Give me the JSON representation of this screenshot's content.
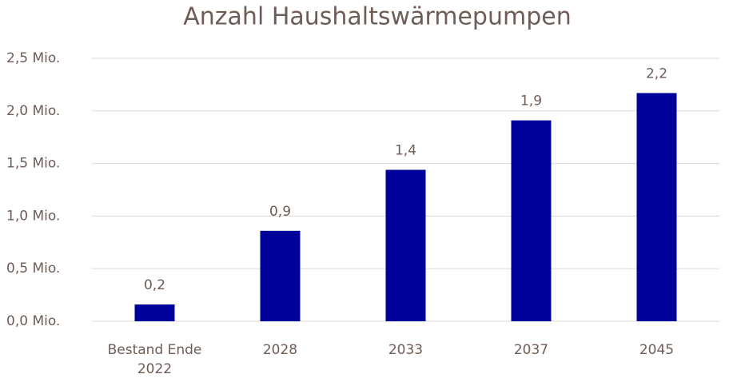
{
  "chart_data": {
    "type": "bar",
    "title": "Anzahl Haushaltswärmepumpen",
    "categories": [
      "Bestand Ende 2022",
      "2028",
      "2033",
      "2037",
      "2045"
    ],
    "values": [
      0.16,
      0.86,
      1.44,
      1.91,
      2.17
    ],
    "value_labels": [
      "0,2",
      "0,9",
      "1,4",
      "1,9",
      "2,2"
    ],
    "color": "#00009a",
    "ylim": [
      0,
      2.5
    ],
    "yticks": [
      {
        "value": 0,
        "label": "0,0 Mio."
      },
      {
        "value": 0.5,
        "label": "0,5 Mio."
      },
      {
        "value": 1,
        "label": "1,0 Mio."
      },
      {
        "value": 1.5,
        "label": "1,5 Mio."
      },
      {
        "value": 2,
        "label": "2,0 Mio."
      },
      {
        "value": 2.5,
        "label": "2,5 Mio."
      }
    ],
    "grid": true
  }
}
